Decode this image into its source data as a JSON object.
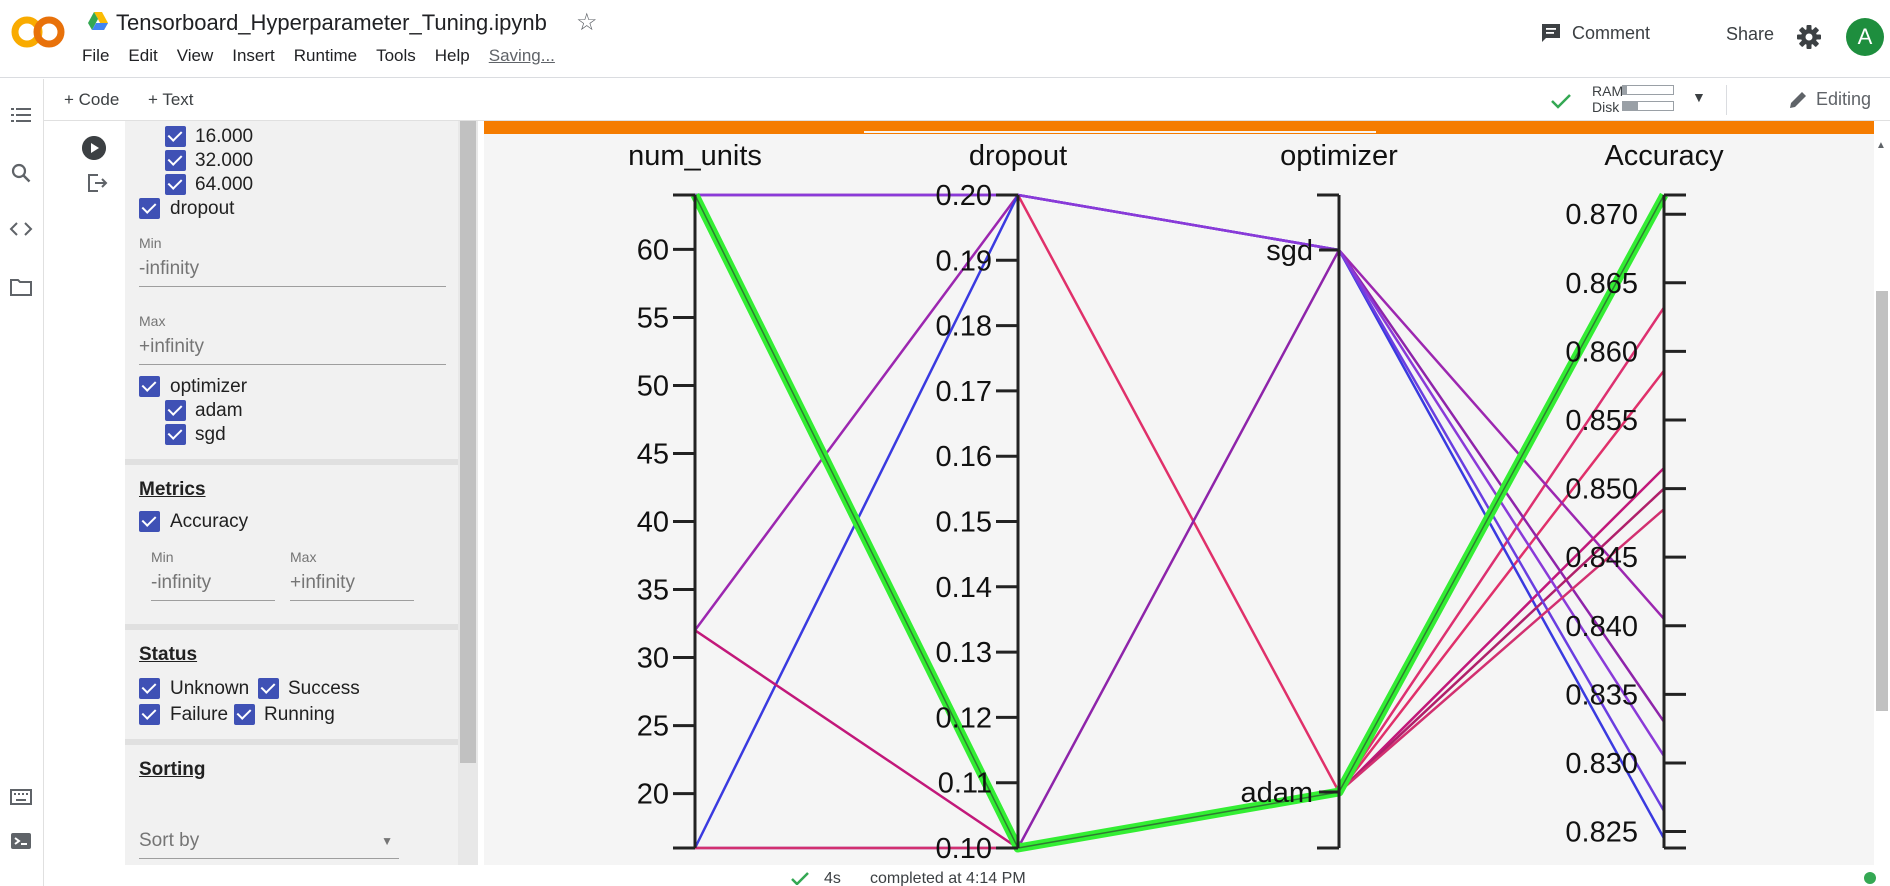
{
  "header": {
    "logo_text": "CO",
    "title": "Tensorboard_Hyperparameter_Tuning.ipynb",
    "menu": [
      "File",
      "Edit",
      "View",
      "Insert",
      "Runtime",
      "Tools",
      "Help"
    ],
    "saving": "Saving...",
    "comment_label": "Comment",
    "share_label": "Share",
    "avatar_letter": "A"
  },
  "toolbar": {
    "code_label": "+ Code",
    "text_label": "+ Text",
    "ram_label": "RAM",
    "disk_label": "Disk",
    "ram_fraction": 0.08,
    "disk_fraction": 0.3,
    "editing_label": "Editing"
  },
  "panel": {
    "num_units_values": [
      "16.000",
      "32.000",
      "64.000"
    ],
    "dropout_label": "dropout",
    "min_label": "Min",
    "max_label": "Max",
    "min_value": "-infinity",
    "max_value": "+infinity",
    "optimizer_label": "optimizer",
    "optimizer_values": [
      "adam",
      "sgd"
    ],
    "metrics_title": "Metrics",
    "accuracy_label": "Accuracy",
    "status_title": "Status",
    "status_unknown": "Unknown",
    "status_success": "Success",
    "status_failure": "Failure",
    "status_running": "Running",
    "sorting_title": "Sorting",
    "sort_by_placeholder": "Sort by"
  },
  "status_bar": {
    "duration": "4s",
    "completed": "completed at 4:14 PM"
  },
  "chart_data": {
    "type": "parallel_coordinates",
    "axes": [
      {
        "name": "num_units",
        "ticks": [
          20,
          25,
          30,
          35,
          40,
          45,
          50,
          55,
          60
        ],
        "range": [
          16,
          64
        ]
      },
      {
        "name": "dropout",
        "ticks": [
          0.1,
          0.11,
          0.12,
          0.13,
          0.14,
          0.15,
          0.16,
          0.17,
          0.18,
          0.19,
          0.2
        ],
        "tick_labels": [
          "0.10",
          "0.11",
          "0.12",
          "0.13",
          "0.14",
          "0.15",
          "0.16",
          "0.17",
          "0.18",
          "0.19",
          "0.20"
        ],
        "range": [
          0.1,
          0.2
        ]
      },
      {
        "name": "optimizer",
        "categories": [
          "sgd",
          "adam"
        ]
      },
      {
        "name": "Accuracy",
        "ticks": [
          0.825,
          0.83,
          0.835,
          0.84,
          0.845,
          0.85,
          0.855,
          0.86,
          0.865,
          0.87
        ],
        "tick_labels": [
          "0.825",
          "0.830",
          "0.835",
          "0.840",
          "0.845",
          "0.850",
          "0.855",
          "0.860",
          "0.865",
          "0.870"
        ],
        "range": [
          0.8238,
          0.8714
        ]
      }
    ],
    "runs": [
      {
        "num_units": 64,
        "dropout": 0.1,
        "optimizer": "adam",
        "accuracy": 0.8714,
        "color": "#33ee33",
        "highlight": true
      },
      {
        "num_units": 64,
        "dropout": 0.1,
        "optimizer": "adam",
        "accuracy": 0.8632,
        "color": "#dd3070"
      },
      {
        "num_units": 64,
        "dropout": 0.2,
        "optimizer": "adam",
        "accuracy": 0.8586,
        "color": "#e0306a"
      },
      {
        "num_units": 32,
        "dropout": 0.2,
        "optimizer": "sgd",
        "accuracy": 0.8405,
        "color": "#9c27b0"
      },
      {
        "num_units": 16,
        "dropout": 0.2,
        "optimizer": "sgd",
        "accuracy": 0.8245,
        "color": "#3a3ae0"
      },
      {
        "num_units": 32,
        "dropout": 0.1,
        "optimizer": "adam",
        "accuracy": 0.8515,
        "color": "#c2187a"
      },
      {
        "num_units": 16,
        "dropout": 0.1,
        "optimizer": "sgd",
        "accuracy": 0.833,
        "color": "#8e24aa"
      },
      {
        "num_units": 64,
        "dropout": 0.1,
        "optimizer": "adam",
        "accuracy": 0.85,
        "color": "#b0206a"
      },
      {
        "num_units": 64,
        "dropout": 0.2,
        "optimizer": "sgd",
        "accuracy": 0.8265,
        "color": "#6a3ee0"
      },
      {
        "num_units": 64,
        "dropout": 0.2,
        "optimizer": "sgd",
        "accuracy": 0.8305,
        "color": "#8a3ad8"
      },
      {
        "num_units": 16,
        "dropout": 0.1,
        "optimizer": "adam",
        "accuracy": 0.8485,
        "color": "#d23070"
      }
    ]
  },
  "colors": {
    "accent": "#f57c00",
    "checkbox": "#3f51b5",
    "avatar": "#1e8e3e",
    "highlight_run": "#33ee33"
  }
}
